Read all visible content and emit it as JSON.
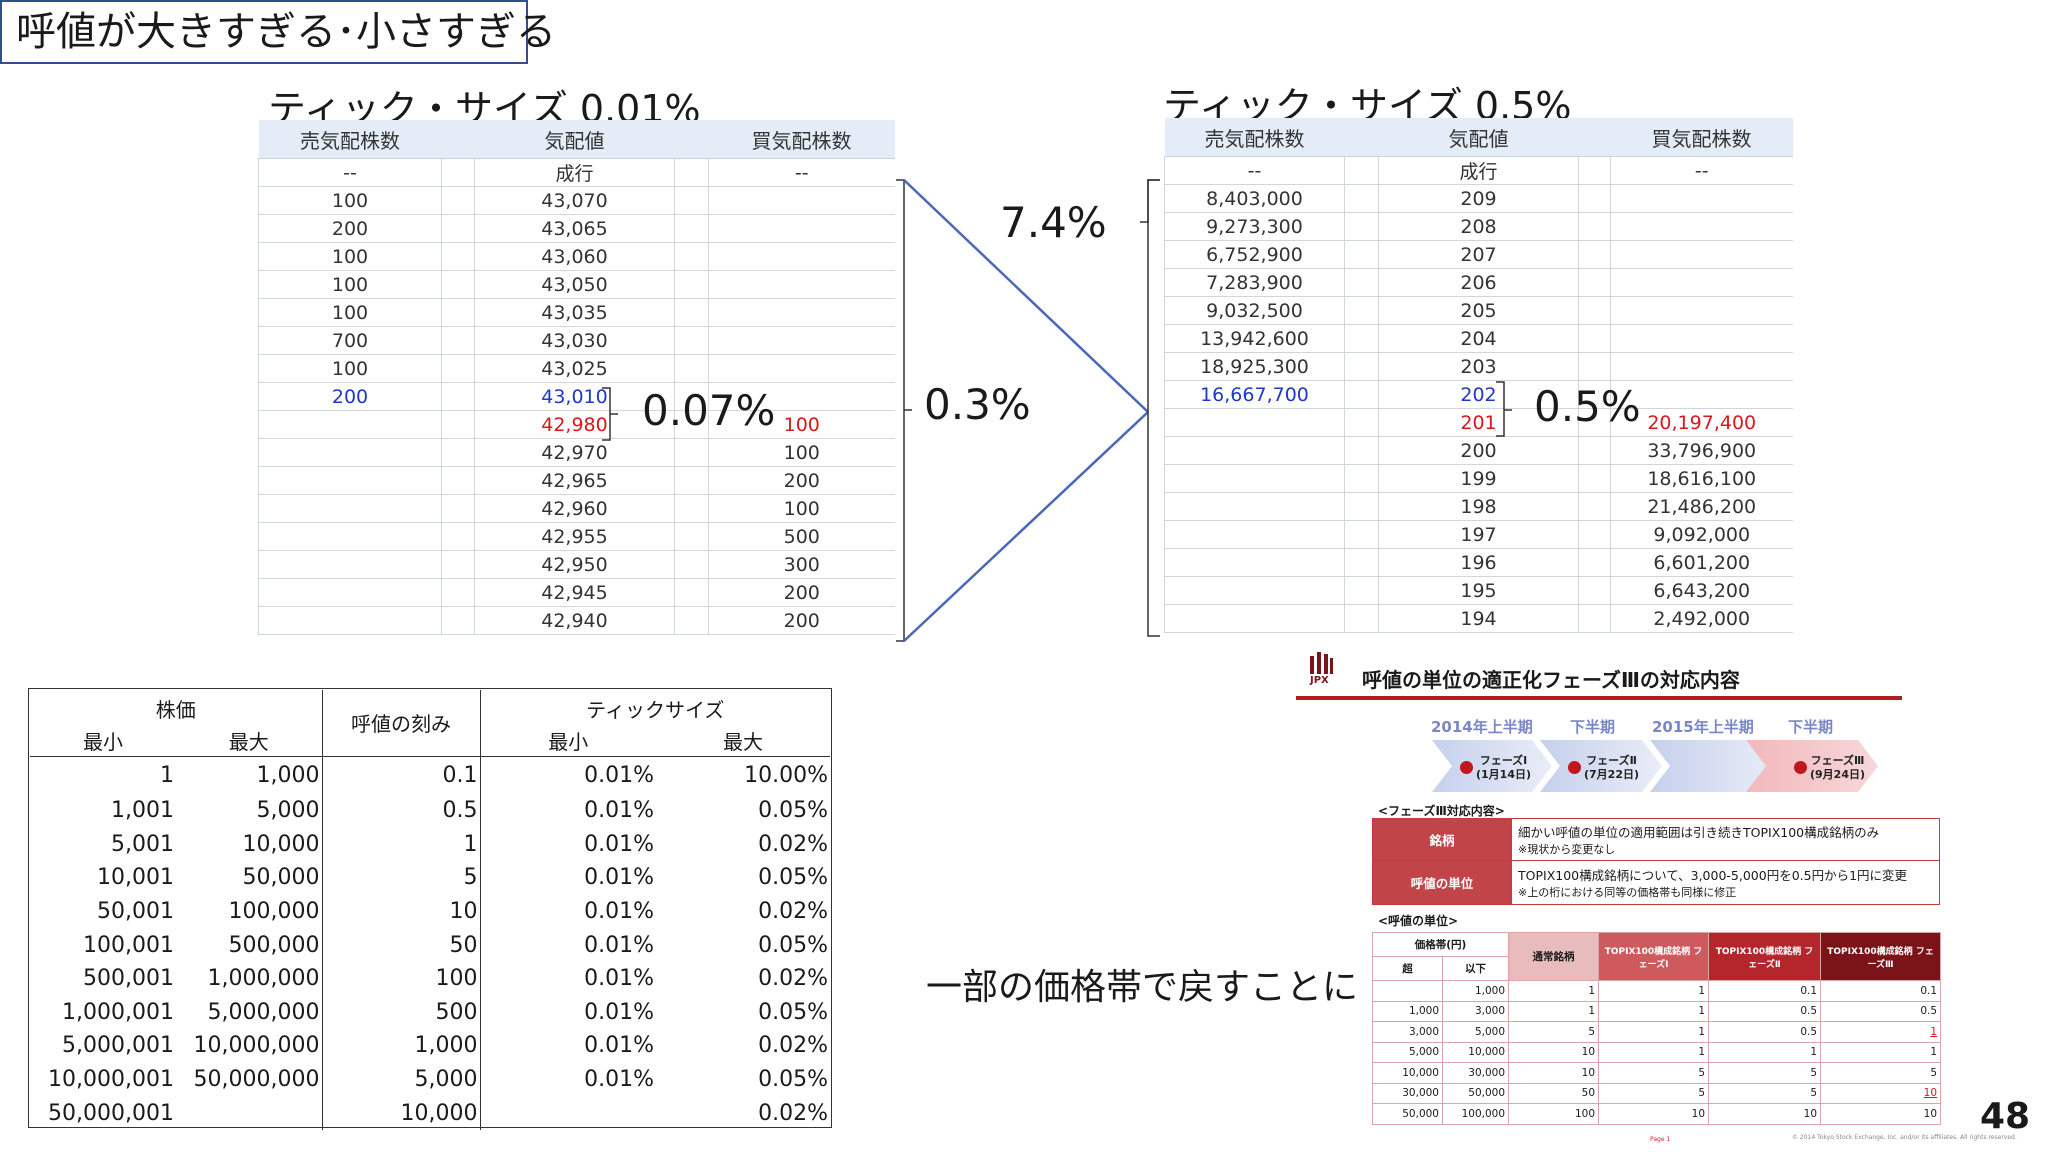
{
  "slide": {
    "title": "呼値が大きすぎる･小さすぎる",
    "page_number": "48",
    "return_text": "一部の価格帯で戻すことに"
  },
  "board_left": {
    "caption": "ティック・サイズ 0.01%",
    "headers": [
      "売気配株数",
      "気配値",
      "買気配株数"
    ],
    "rows": [
      {
        "sell": "--",
        "price": "成行",
        "buy": "--",
        "color": ""
      },
      {
        "sell": "100",
        "price": "43,070",
        "buy": "",
        "color": ""
      },
      {
        "sell": "200",
        "price": "43,065",
        "buy": "",
        "color": ""
      },
      {
        "sell": "100",
        "price": "43,060",
        "buy": "",
        "color": ""
      },
      {
        "sell": "100",
        "price": "43,050",
        "buy": "",
        "color": ""
      },
      {
        "sell": "100",
        "price": "43,035",
        "buy": "",
        "color": ""
      },
      {
        "sell": "700",
        "price": "43,030",
        "buy": "",
        "color": ""
      },
      {
        "sell": "100",
        "price": "43,025",
        "buy": "",
        "color": ""
      },
      {
        "sell": "200",
        "price": "43,010",
        "buy": "",
        "color": "blue"
      },
      {
        "sell": "",
        "price": "42,980",
        "buy": "100",
        "color": "red"
      },
      {
        "sell": "",
        "price": "42,970",
        "buy": "100",
        "color": ""
      },
      {
        "sell": "",
        "price": "42,965",
        "buy": "200",
        "color": ""
      },
      {
        "sell": "",
        "price": "42,960",
        "buy": "100",
        "color": ""
      },
      {
        "sell": "",
        "price": "42,955",
        "buy": "500",
        "color": ""
      },
      {
        "sell": "",
        "price": "42,950",
        "buy": "300",
        "color": ""
      },
      {
        "sell": "",
        "price": "42,945",
        "buy": "200",
        "color": ""
      },
      {
        "sell": "",
        "price": "42,940",
        "buy": "200",
        "color": ""
      }
    ],
    "spread_pct": "0.07%",
    "range_pct": "0.3%"
  },
  "board_right": {
    "caption": "ティック・サイズ 0.5%",
    "headers": [
      "売気配株数",
      "気配値",
      "買気配株数"
    ],
    "rows": [
      {
        "sell": "--",
        "price": "成行",
        "buy": "--",
        "color": ""
      },
      {
        "sell": "8,403,000",
        "price": "209",
        "buy": "",
        "color": ""
      },
      {
        "sell": "9,273,300",
        "price": "208",
        "buy": "",
        "color": ""
      },
      {
        "sell": "6,752,900",
        "price": "207",
        "buy": "",
        "color": ""
      },
      {
        "sell": "7,283,900",
        "price": "206",
        "buy": "",
        "color": ""
      },
      {
        "sell": "9,032,500",
        "price": "205",
        "buy": "",
        "color": ""
      },
      {
        "sell": "13,942,600",
        "price": "204",
        "buy": "",
        "color": ""
      },
      {
        "sell": "18,925,300",
        "price": "203",
        "buy": "",
        "color": ""
      },
      {
        "sell": "16,667,700",
        "price": "202",
        "buy": "",
        "color": "blue"
      },
      {
        "sell": "",
        "price": "201",
        "buy": "20,197,400",
        "color": "red"
      },
      {
        "sell": "",
        "price": "200",
        "buy": "33,796,900",
        "color": ""
      },
      {
        "sell": "",
        "price": "199",
        "buy": "18,616,100",
        "color": ""
      },
      {
        "sell": "",
        "price": "198",
        "buy": "21,486,200",
        "color": ""
      },
      {
        "sell": "",
        "price": "197",
        "buy": "9,092,000",
        "color": ""
      },
      {
        "sell": "",
        "price": "196",
        "buy": "6,601,200",
        "color": ""
      },
      {
        "sell": "",
        "price": "195",
        "buy": "6,643,200",
        "color": ""
      },
      {
        "sell": "",
        "price": "194",
        "buy": "2,492,000",
        "color": ""
      }
    ],
    "spread_pct": "0.5%",
    "range_pct": "7.4%"
  },
  "tick_table": {
    "h_price": "株価",
    "h_unit": "呼値の刻み",
    "h_tick": "ティックサイズ",
    "h_min": "最小",
    "h_max": "最大",
    "rows": [
      {
        "min": "1",
        "max": "1,000",
        "unit": "0.1",
        "tmin": "0.01%",
        "tmax": "10.00%"
      },
      {
        "min": "1,001",
        "max": "5,000",
        "unit": "0.5",
        "tmin": "0.01%",
        "tmax": "0.05%"
      },
      {
        "min": "5,001",
        "max": "10,000",
        "unit": "1",
        "tmin": "0.01%",
        "tmax": "0.02%"
      },
      {
        "min": "10,001",
        "max": "50,000",
        "unit": "5",
        "tmin": "0.01%",
        "tmax": "0.05%"
      },
      {
        "min": "50,001",
        "max": "100,000",
        "unit": "10",
        "tmin": "0.01%",
        "tmax": "0.02%"
      },
      {
        "min": "100,001",
        "max": "500,000",
        "unit": "50",
        "tmin": "0.01%",
        "tmax": "0.05%"
      },
      {
        "min": "500,001",
        "max": "1,000,000",
        "unit": "100",
        "tmin": "0.01%",
        "tmax": "0.02%"
      },
      {
        "min": "1,000,001",
        "max": "5,000,000",
        "unit": "500",
        "tmin": "0.01%",
        "tmax": "0.05%"
      },
      {
        "min": "5,000,001",
        "max": "10,000,000",
        "unit": "1,000",
        "tmin": "0.01%",
        "tmax": "0.02%"
      },
      {
        "min": "10,000,001",
        "max": "50,000,000",
        "unit": "5,000",
        "tmin": "0.01%",
        "tmax": "0.05%"
      },
      {
        "min": "50,000,001",
        "max": "",
        "unit": "10,000",
        "tmin": "",
        "tmax": "0.02%"
      }
    ]
  },
  "jpx_doc": {
    "logo_text": "JPX",
    "title": "呼値の単位の適正化フェーズⅢの対応内容",
    "periods": [
      "2014年上半期",
      "下半期",
      "2015年上半期",
      "下半期"
    ],
    "phases": [
      {
        "name": "フェーズⅠ",
        "date": "(1月14日)"
      },
      {
        "name": "フェーズⅡ",
        "date": "(7月22日)"
      },
      {
        "name": "フェーズⅢ",
        "date": "(9月24日)"
      }
    ],
    "section1": "<フェーズⅢ対応内容>",
    "info_rows": [
      {
        "label": "銘柄",
        "line1": "細かい呼値の単位の適用範囲は引き続きTOPIX100構成銘柄のみ",
        "line2": "※現状から変更なし"
      },
      {
        "label": "呼値の単位",
        "line1": "TOPIX100構成銘柄について、3,000-5,000円を0.5円から1円に変更",
        "line2": "※上の桁における同等の価格帯も同様に修正"
      }
    ],
    "section2": "<呼値の単位>",
    "table_headers": {
      "band": "価格帯(円)",
      "over": "超",
      "under": "以下",
      "normal": "通常銘柄",
      "p1": "TOPIX100構成銘柄 フェーズⅠ",
      "p2": "TOPIX100構成銘柄 フェーズⅡ",
      "p3": "TOPIX100構成銘柄 フェーズⅢ"
    },
    "table_rows": [
      {
        "over": "",
        "under": "1,000",
        "normal": "1",
        "p1": "1",
        "p2": "0.1",
        "p3": "0.1",
        "p3_changed": false
      },
      {
        "over": "1,000",
        "under": "3,000",
        "normal": "1",
        "p1": "1",
        "p2": "0.5",
        "p3": "0.5",
        "p3_changed": false
      },
      {
        "over": "3,000",
        "under": "5,000",
        "normal": "5",
        "p1": "1",
        "p2": "0.5",
        "p3": "1",
        "p3_changed": true
      },
      {
        "over": "5,000",
        "under": "10,000",
        "normal": "10",
        "p1": "1",
        "p2": "1",
        "p3": "1",
        "p3_changed": false
      },
      {
        "over": "10,000",
        "under": "30,000",
        "normal": "10",
        "p1": "5",
        "p2": "5",
        "p3": "5",
        "p3_changed": false
      },
      {
        "over": "30,000",
        "under": "50,000",
        "normal": "50",
        "p1": "5",
        "p2": "5",
        "p3": "10",
        "p3_changed": true
      },
      {
        "over": "50,000",
        "under": "100,000",
        "normal": "100",
        "p1": "10",
        "p2": "10",
        "p3": "10",
        "p3_changed": false
      }
    ],
    "footer_page": "Page 1",
    "footer_copy": "© 2014 Tokyo Stock Exchange, Inc. and/or its affiliates. All rights reserved.",
    "colors": {
      "accent": "#b31a22",
      "phase_blue": "#7b86c8"
    }
  }
}
